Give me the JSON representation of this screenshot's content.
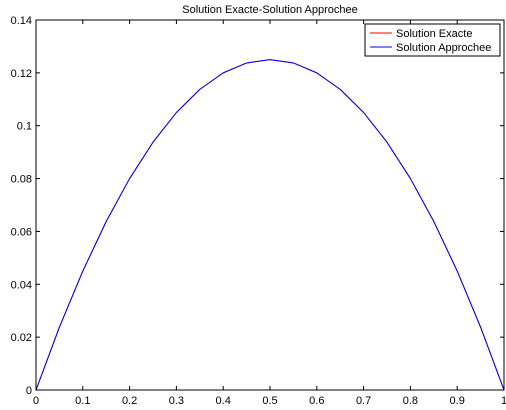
{
  "chart_data": {
    "type": "line",
    "title": "Solution Exacte-Solution Approchee",
    "xlabel": "",
    "ylabel": "",
    "xlim": [
      0,
      1
    ],
    "ylim": [
      0,
      0.14
    ],
    "x_ticks": [
      "0",
      "0.1",
      "0.2",
      "0.3",
      "0.4",
      "0.5",
      "0.6",
      "0.7",
      "0.8",
      "0.9",
      "1"
    ],
    "y_ticks": [
      "0",
      "0.02",
      "0.04",
      "0.06",
      "0.08",
      "0.1",
      "0.12",
      "0.14"
    ],
    "grid": false,
    "legend_position": "top-right",
    "x": [
      0,
      0.05,
      0.1,
      0.15,
      0.2,
      0.25,
      0.3,
      0.35,
      0.4,
      0.45,
      0.5,
      0.55,
      0.6,
      0.65,
      0.7,
      0.75,
      0.8,
      0.85,
      0.9,
      0.95,
      1
    ],
    "series": [
      {
        "name": "Solution Exacte",
        "color": "#ff0000",
        "values": [
          0,
          0.02375,
          0.045,
          0.06375,
          0.08,
          0.09375,
          0.105,
          0.11375,
          0.12,
          0.12375,
          0.125,
          0.12375,
          0.12,
          0.11375,
          0.105,
          0.09375,
          0.08,
          0.06375,
          0.045,
          0.02375,
          0
        ]
      },
      {
        "name": "Solution Approchee",
        "color": "#0000ff",
        "values": [
          0,
          0.02375,
          0.045,
          0.06375,
          0.08,
          0.09375,
          0.105,
          0.11375,
          0.12,
          0.12375,
          0.125,
          0.12375,
          0.12,
          0.11375,
          0.105,
          0.09375,
          0.08,
          0.06375,
          0.045,
          0.02375,
          0
        ]
      }
    ]
  }
}
